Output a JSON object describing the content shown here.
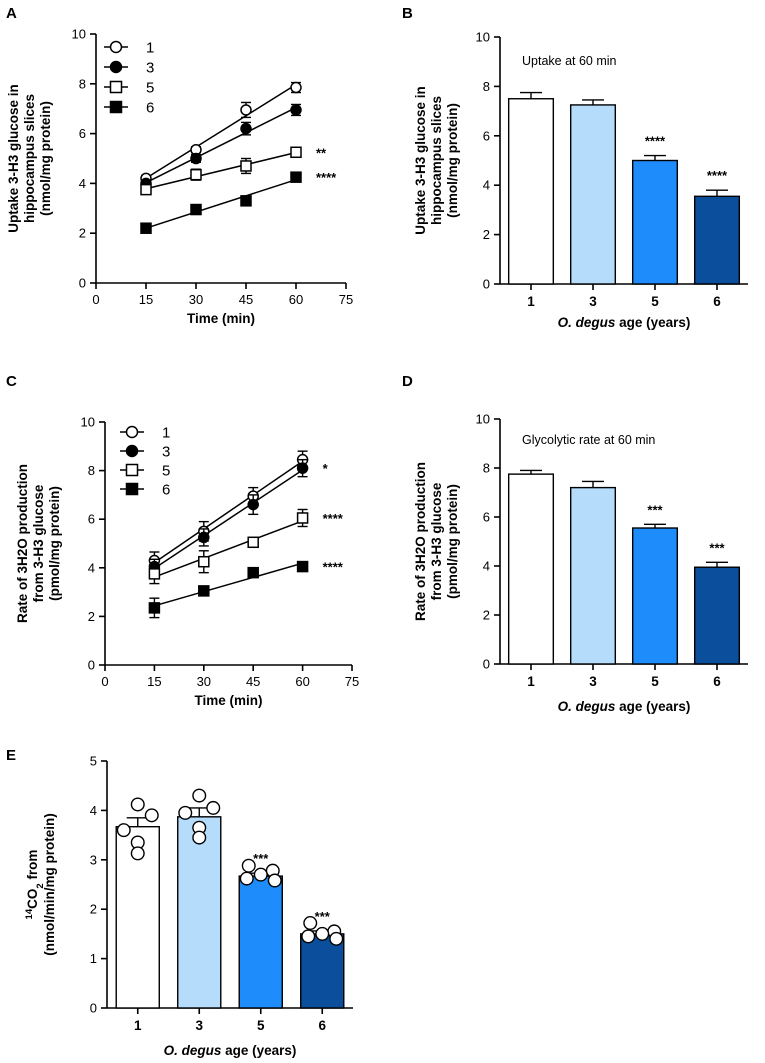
{
  "colors": {
    "age1": "#ffffff",
    "age3": "#b5dcfb",
    "age5": "#1e8dfb",
    "age6": "#0b4f9c",
    "ink": "#000000"
  },
  "chart_data": [
    {
      "panel": "A",
      "type": "line",
      "xlabel": "Time (min)",
      "ylabel_lines": [
        "Uptake 3-H3 glucose in",
        "hippocampus slices",
        "(nmol/mg protein)"
      ],
      "xlim": [
        0,
        75
      ],
      "ylim": [
        0,
        10
      ],
      "xticks": [
        0,
        15,
        30,
        45,
        60,
        75
      ],
      "yticks": [
        0,
        2,
        4,
        6,
        8,
        10
      ],
      "x": [
        15,
        30,
        45,
        60
      ],
      "series": [
        {
          "name": "1",
          "marker": "open-circle",
          "values": [
            4.2,
            5.35,
            6.95,
            7.85
          ],
          "errors": [
            0.12,
            0.12,
            0.3,
            0.2
          ],
          "sig": ""
        },
        {
          "name": "3",
          "marker": "filled-circle",
          "values": [
            4.0,
            5.0,
            6.2,
            6.95
          ],
          "errors": [
            0.12,
            0.15,
            0.25,
            0.22
          ],
          "sig": ""
        },
        {
          "name": "5",
          "marker": "open-square",
          "values": [
            3.75,
            4.35,
            4.7,
            5.25
          ],
          "errors": [
            0.12,
            0.22,
            0.3,
            0.15
          ],
          "sig": "**"
        },
        {
          "name": "6",
          "marker": "filled-square",
          "values": [
            2.2,
            2.95,
            3.3,
            4.25
          ],
          "errors": [
            0.08,
            0.08,
            0.08,
            0.1
          ],
          "sig": "****"
        }
      ]
    },
    {
      "panel": "B",
      "type": "bar",
      "annotation": "Uptake at 60 min",
      "xlabel_italic": "O. degus",
      "xlabel_rest": " age (years)",
      "ylabel_lines": [
        "Uptake 3-H3 glucose in",
        "hippocampus slices",
        "(nmol/mg protein)"
      ],
      "ylim": [
        0,
        10
      ],
      "yticks": [
        0,
        2,
        4,
        6,
        8,
        10
      ],
      "categories": [
        "1",
        "3",
        "5",
        "6"
      ],
      "values": [
        7.5,
        7.25,
        5.0,
        3.55
      ],
      "errors": [
        0.25,
        0.2,
        0.2,
        0.25
      ],
      "sig": [
        "",
        "",
        "****",
        "****"
      ]
    },
    {
      "panel": "C",
      "type": "line",
      "xlabel": "Time (min)",
      "ylabel_lines": [
        "Rate of 3H2O production",
        "from 3-H3 glucose",
        "(pmol/mg protein)"
      ],
      "xlim": [
        0,
        75
      ],
      "ylim": [
        0,
        10
      ],
      "xticks": [
        0,
        15,
        30,
        45,
        60,
        75
      ],
      "yticks": [
        0,
        2,
        4,
        6,
        8,
        10
      ],
      "x": [
        15,
        30,
        45,
        60
      ],
      "series": [
        {
          "name": "1",
          "marker": "open-circle",
          "values": [
            4.3,
            5.5,
            6.95,
            8.45
          ],
          "errors": [
            0.35,
            0.4,
            0.35,
            0.35
          ],
          "sig": ""
        },
        {
          "name": "3",
          "marker": "filled-circle",
          "values": [
            4.05,
            5.25,
            6.6,
            8.1
          ],
          "errors": [
            0.3,
            0.35,
            0.4,
            0.35
          ],
          "sig": "*"
        },
        {
          "name": "5",
          "marker": "open-square",
          "values": [
            3.75,
            4.25,
            5.05,
            6.05
          ],
          "errors": [
            0.4,
            0.45,
            0.15,
            0.35
          ],
          "sig": "****"
        },
        {
          "name": "6",
          "marker": "filled-square",
          "values": [
            2.35,
            3.05,
            3.8,
            4.05
          ],
          "errors": [
            0.4,
            0.15,
            0.15,
            0.1
          ],
          "sig": "****"
        }
      ]
    },
    {
      "panel": "D",
      "type": "bar",
      "annotation": "Glycolytic rate at 60 min",
      "xlabel_italic": "O. degus",
      "xlabel_rest": " age (years)",
      "ylabel_lines": [
        "Rate of 3H2O production",
        "from 3-H3 glucose",
        "(pmol/mg protein)"
      ],
      "ylim": [
        0,
        10
      ],
      "yticks": [
        0,
        2,
        4,
        6,
        8,
        10
      ],
      "categories": [
        "1",
        "3",
        "5",
        "6"
      ],
      "values": [
        7.75,
        7.2,
        5.55,
        3.95
      ],
      "errors": [
        0.15,
        0.25,
        0.15,
        0.2
      ],
      "sig": [
        "",
        "",
        "***",
        "***"
      ]
    },
    {
      "panel": "E",
      "type": "bar",
      "xlabel_italic": "O. degus",
      "xlabel_rest": " age (years)",
      "ylabel_sup": "14",
      "ylabel_pre": "CO",
      "ylabel_sub": "2",
      "ylabel_post": " from",
      "ylabel_line2": "(nmol/min/mg protein)",
      "ylim": [
        0,
        5
      ],
      "yticks": [
        0,
        1,
        2,
        3,
        4,
        5
      ],
      "categories": [
        "1",
        "3",
        "5",
        "6"
      ],
      "values": [
        3.67,
        3.87,
        2.67,
        1.5
      ],
      "errors": [
        0.18,
        0.18,
        0.06,
        0.06
      ],
      "points": [
        [
          4.12,
          3.9,
          3.6,
          3.35,
          3.13
        ],
        [
          4.3,
          4.05,
          3.95,
          3.65,
          3.45
        ],
        [
          2.88,
          2.78,
          2.7,
          2.62,
          2.58
        ],
        [
          1.72,
          1.55,
          1.5,
          1.45,
          1.4
        ]
      ],
      "sig": [
        "",
        "",
        "***",
        "***"
      ]
    }
  ]
}
